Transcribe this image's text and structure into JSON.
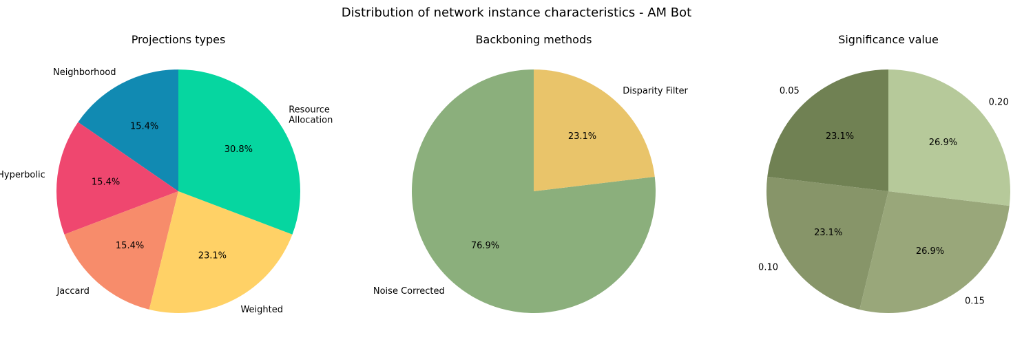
{
  "figure": {
    "title": "Distribution of network instance characteristics - AM Bot"
  },
  "chart_data": [
    {
      "type": "pie",
      "title": "Projections types",
      "start_angle_deg": 90,
      "direction": "counterclockwise",
      "slices": [
        {
          "label": "Neighborhood",
          "value": 15.4,
          "display": "15.4%",
          "color": "#118AB2"
        },
        {
          "label": "Hyperbolic",
          "value": 15.4,
          "display": "15.4%",
          "color": "#EF476F"
        },
        {
          "label": "Jaccard",
          "value": 15.4,
          "display": "15.4%",
          "color": "#F78C6B"
        },
        {
          "label": "Weighted",
          "value": 23.1,
          "display": "23.1%",
          "color": "#FFD166"
        },
        {
          "label": "Resource\nAllocation",
          "value": 30.8,
          "display": "30.8%",
          "color": "#06D6A0"
        }
      ]
    },
    {
      "type": "pie",
      "title": "Backboning methods",
      "start_angle_deg": 90,
      "direction": "counterclockwise",
      "slices": [
        {
          "label": "Noise Corrected",
          "value": 76.9,
          "display": "76.9%",
          "color": "#8BAF7C"
        },
        {
          "label": "Disparity Filter",
          "value": 23.1,
          "display": "23.1%",
          "color": "#E9C46A"
        }
      ]
    },
    {
      "type": "pie",
      "title": "Significance value",
      "start_angle_deg": 90,
      "direction": "counterclockwise",
      "slices": [
        {
          "label": "0.05",
          "value": 23.1,
          "display": "23.1%",
          "color": "#708153"
        },
        {
          "label": "0.10",
          "value": 23.1,
          "display": "23.1%",
          "color": "#879569"
        },
        {
          "label": "0.15",
          "value": 26.9,
          "display": "26.9%",
          "color": "#99A77A"
        },
        {
          "label": "0.20",
          "value": 26.9,
          "display": "26.9%",
          "color": "#B6C99A"
        }
      ]
    }
  ]
}
